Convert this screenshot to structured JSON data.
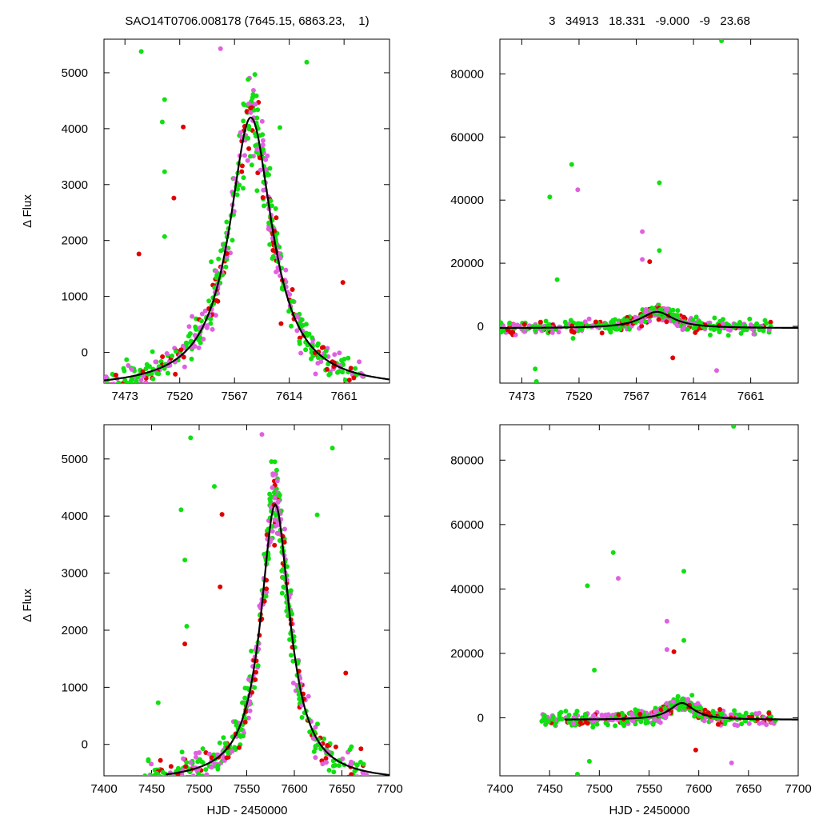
{
  "figure": {
    "title_left": "SAO14T0706.008178 (7645.15, 6863.23,    1)",
    "title_right": "3   34913   18.331   -9.000   -9   23.68",
    "ylabel": "Δ Flux",
    "xlabel": "HJD - 2450000"
  },
  "colors": {
    "green": "#10e010",
    "red": "#e00000",
    "magenta": "#e060e0",
    "model": "#000000"
  },
  "chart_data": [
    {
      "panel": "top-left",
      "type": "scatter",
      "xlim": [
        7455,
        7700
      ],
      "ylim": [
        -550,
        5600
      ],
      "xticks": [
        7473,
        7520,
        7567,
        7614,
        7661
      ],
      "yticks": [
        0,
        1000,
        2000,
        3000,
        4000,
        5000
      ],
      "model": {
        "t0": 7581,
        "amplitude": 4200,
        "tE": 30,
        "baseline": -650
      },
      "outliers": [
        {
          "x": 7487,
          "y": 5380,
          "c": "green"
        },
        {
          "x": 7505,
          "y": 4120,
          "c": "green"
        },
        {
          "x": 7507,
          "y": 4520,
          "c": "green"
        },
        {
          "x": 7523,
          "y": 4030,
          "c": "red"
        },
        {
          "x": 7507,
          "y": 3230,
          "c": "green"
        },
        {
          "x": 7515,
          "y": 2760,
          "c": "red"
        },
        {
          "x": 7507,
          "y": 2070,
          "c": "green"
        },
        {
          "x": 7485,
          "y": 1760,
          "c": "red"
        },
        {
          "x": 7547,
          "y": 1620,
          "c": "green"
        },
        {
          "x": 7629,
          "y": 5190,
          "c": "green"
        },
        {
          "x": 7606,
          "y": 4020,
          "c": "green"
        },
        {
          "x": 7555,
          "y": 5430,
          "c": "magenta"
        },
        {
          "x": 7660,
          "y": 1250,
          "c": "red"
        }
      ]
    },
    {
      "panel": "top-right",
      "type": "scatter",
      "xlim": [
        7455,
        7700
      ],
      "ylim": [
        -18000,
        91000
      ],
      "xticks": [
        7473,
        7520,
        7567,
        7614,
        7661
      ],
      "yticks": [
        0,
        20000,
        40000,
        60000,
        80000
      ],
      "model": {
        "t0": 7584,
        "amplitude": 4600,
        "tE": 22,
        "baseline": -600
      },
      "outliers": [
        {
          "x": 7514,
          "y": 51300,
          "c": "green"
        },
        {
          "x": 7519,
          "y": 43300,
          "c": "magenta"
        },
        {
          "x": 7496,
          "y": 41000,
          "c": "green"
        },
        {
          "x": 7586,
          "y": 45500,
          "c": "green"
        },
        {
          "x": 7572,
          "y": 30000,
          "c": "magenta"
        },
        {
          "x": 7586,
          "y": 24000,
          "c": "green"
        },
        {
          "x": 7572,
          "y": 21200,
          "c": "magenta"
        },
        {
          "x": 7578,
          "y": 20500,
          "c": "red"
        },
        {
          "x": 7502,
          "y": 14800,
          "c": "green"
        },
        {
          "x": 7637,
          "y": 90500,
          "c": "green"
        },
        {
          "x": 7484,
          "y": -13500,
          "c": "green"
        },
        {
          "x": 7485,
          "y": -17500,
          "c": "green"
        },
        {
          "x": 7633,
          "y": -14000,
          "c": "magenta"
        },
        {
          "x": 7597,
          "y": -10000,
          "c": "red"
        }
      ]
    },
    {
      "panel": "bottom-left",
      "type": "scatter",
      "xlim": [
        7400,
        7700
      ],
      "ylim": [
        -550,
        5600
      ],
      "xticks": [
        7400,
        7450,
        7500,
        7550,
        7600,
        7650,
        7700
      ],
      "yticks": [
        0,
        1000,
        2000,
        3000,
        4000,
        5000
      ],
      "model": {
        "t0": 7580,
        "amplitude": 4200,
        "tE": 25,
        "baseline": -650
      },
      "outliers": [
        {
          "x": 7491,
          "y": 5370,
          "c": "green"
        },
        {
          "x": 7481,
          "y": 4110,
          "c": "green"
        },
        {
          "x": 7516,
          "y": 4520,
          "c": "green"
        },
        {
          "x": 7524,
          "y": 4030,
          "c": "red"
        },
        {
          "x": 7485,
          "y": 3230,
          "c": "green"
        },
        {
          "x": 7522,
          "y": 2760,
          "c": "red"
        },
        {
          "x": 7487,
          "y": 2070,
          "c": "green"
        },
        {
          "x": 7485,
          "y": 1760,
          "c": "red"
        },
        {
          "x": 7457,
          "y": 730,
          "c": "green"
        },
        {
          "x": 7640,
          "y": 5190,
          "c": "green"
        },
        {
          "x": 7624,
          "y": 4020,
          "c": "green"
        },
        {
          "x": 7566,
          "y": 5430,
          "c": "magenta"
        },
        {
          "x": 7654,
          "y": 1250,
          "c": "red"
        }
      ]
    },
    {
      "panel": "bottom-right",
      "type": "scatter",
      "xlim": [
        7400,
        7700
      ],
      "ylim": [
        -18000,
        91000
      ],
      "xticks": [
        7400,
        7450,
        7500,
        7550,
        7600,
        7650,
        7700
      ],
      "yticks": [
        0,
        20000,
        40000,
        60000,
        80000
      ],
      "model": {
        "t0": 7583,
        "amplitude": 4600,
        "tE": 20,
        "baseline": -600
      },
      "outliers": [
        {
          "x": 7514,
          "y": 51300,
          "c": "green"
        },
        {
          "x": 7519,
          "y": 43300,
          "c": "magenta"
        },
        {
          "x": 7488,
          "y": 41000,
          "c": "green"
        },
        {
          "x": 7585,
          "y": 45500,
          "c": "green"
        },
        {
          "x": 7568,
          "y": 30000,
          "c": "magenta"
        },
        {
          "x": 7585,
          "y": 24000,
          "c": "green"
        },
        {
          "x": 7568,
          "y": 21200,
          "c": "magenta"
        },
        {
          "x": 7575,
          "y": 20500,
          "c": "red"
        },
        {
          "x": 7495,
          "y": 14800,
          "c": "green"
        },
        {
          "x": 7635,
          "y": 90500,
          "c": "green"
        },
        {
          "x": 7490,
          "y": -13500,
          "c": "green"
        },
        {
          "x": 7478,
          "y": -17500,
          "c": "green"
        },
        {
          "x": 7633,
          "y": -14000,
          "c": "magenta"
        },
        {
          "x": 7597,
          "y": -10000,
          "c": "red"
        }
      ]
    }
  ]
}
